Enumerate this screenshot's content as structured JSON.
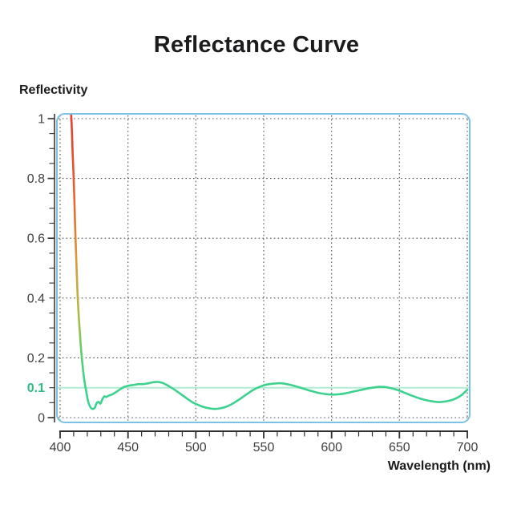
{
  "title": "Reflectance Curve",
  "y_axis_title": "Reflectivity",
  "x_axis_title": "Wavelength (nm)",
  "colors": {
    "plot_border_blue": "#7bc1e5",
    "grid_dots": "#4d4d4d",
    "axis": "#2f2f2f",
    "tick_label": "#3f3f3f",
    "accent_green_label": "#2bbd82",
    "reference_line_mint": "#b2ecd4",
    "curve_green": "#3bd28f"
  },
  "chart_data": {
    "type": "line",
    "title": "Reflectance Curve",
    "xlabel": "Wavelength (nm)",
    "ylabel": "Reflectivity",
    "xlim": [
      400,
      700
    ],
    "ylim": [
      0,
      1
    ],
    "grid": "dotted",
    "x_ticks": [
      {
        "label": "400",
        "value": 400
      },
      {
        "label": "450",
        "value": 450
      },
      {
        "label": "500",
        "value": 500
      },
      {
        "label": "550",
        "value": 550
      },
      {
        "label": "600",
        "value": 600
      },
      {
        "label": "650",
        "value": 650
      },
      {
        "label": "700",
        "value": 700
      }
    ],
    "x_minor_step": 10,
    "y_ticks": [
      {
        "label": "1",
        "value": 1.0
      },
      {
        "label": "0.8",
        "value": 0.8
      },
      {
        "label": "0.6",
        "value": 0.6
      },
      {
        "label": "0.4",
        "value": 0.4
      },
      {
        "label": "0.2",
        "value": 0.2
      },
      {
        "label": "0",
        "value": 0.0
      }
    ],
    "y_minor_step": 0.05,
    "y_highlight": {
      "label": "0.1",
      "value": 0.1
    },
    "reference_line_y": 0.1,
    "series": [
      {
        "name": "reflectance",
        "points": [
          [
            407.5,
            1.06
          ],
          [
            408.5,
            0.98
          ],
          [
            409.3,
            0.88
          ],
          [
            410,
            0.8
          ],
          [
            410.8,
            0.68
          ],
          [
            411.5,
            0.58
          ],
          [
            412.3,
            0.48
          ],
          [
            413,
            0.4
          ],
          [
            414,
            0.32
          ],
          [
            415,
            0.255
          ],
          [
            416,
            0.2
          ],
          [
            417,
            0.155
          ],
          [
            418,
            0.12
          ],
          [
            419,
            0.094
          ],
          [
            420,
            0.068
          ],
          [
            421,
            0.048
          ],
          [
            422.5,
            0.034
          ],
          [
            424,
            0.029
          ],
          [
            425.5,
            0.033
          ],
          [
            427,
            0.049
          ],
          [
            428.5,
            0.052
          ],
          [
            429.7,
            0.047
          ],
          [
            431,
            0.06
          ],
          [
            432.5,
            0.071
          ],
          [
            434,
            0.069
          ],
          [
            436,
            0.074
          ],
          [
            438,
            0.077
          ],
          [
            440,
            0.082
          ],
          [
            442,
            0.088
          ],
          [
            444,
            0.094
          ],
          [
            446,
            0.1
          ],
          [
            449,
            0.105
          ],
          [
            452,
            0.108
          ],
          [
            455,
            0.11
          ],
          [
            458,
            0.112
          ],
          [
            461,
            0.112
          ],
          [
            464,
            0.114
          ],
          [
            467,
            0.117
          ],
          [
            470,
            0.119
          ],
          [
            473,
            0.119
          ],
          [
            476,
            0.115
          ],
          [
            479,
            0.108
          ],
          [
            482,
            0.1
          ],
          [
            486,
            0.088
          ],
          [
            490,
            0.075
          ],
          [
            494,
            0.062
          ],
          [
            498,
            0.05
          ],
          [
            502,
            0.042
          ],
          [
            506,
            0.035
          ],
          [
            510,
            0.031
          ],
          [
            514,
            0.029
          ],
          [
            518,
            0.031
          ],
          [
            522,
            0.036
          ],
          [
            526,
            0.044
          ],
          [
            530,
            0.055
          ],
          [
            534,
            0.067
          ],
          [
            538,
            0.08
          ],
          [
            542,
            0.092
          ],
          [
            546,
            0.101
          ],
          [
            550,
            0.108
          ],
          [
            554,
            0.112
          ],
          [
            558,
            0.114
          ],
          [
            562,
            0.115
          ],
          [
            566,
            0.113
          ],
          [
            570,
            0.109
          ],
          [
            575,
            0.103
          ],
          [
            580,
            0.096
          ],
          [
            585,
            0.089
          ],
          [
            590,
            0.083
          ],
          [
            595,
            0.079
          ],
          [
            600,
            0.077
          ],
          [
            605,
            0.078
          ],
          [
            610,
            0.081
          ],
          [
            615,
            0.086
          ],
          [
            620,
            0.091
          ],
          [
            625,
            0.096
          ],
          [
            630,
            0.1
          ],
          [
            635,
            0.103
          ],
          [
            640,
            0.102
          ],
          [
            645,
            0.097
          ],
          [
            650,
            0.09
          ],
          [
            655,
            0.081
          ],
          [
            660,
            0.072
          ],
          [
            665,
            0.064
          ],
          [
            670,
            0.058
          ],
          [
            675,
            0.054
          ],
          [
            680,
            0.052
          ],
          [
            685,
            0.055
          ],
          [
            690,
            0.061
          ],
          [
            695,
            0.073
          ],
          [
            700,
            0.093
          ]
        ],
        "gradient_stops": [
          {
            "offset": 0.0,
            "color": "#ea3b30"
          },
          {
            "offset": 0.18,
            "color": "#e6502f"
          },
          {
            "offset": 0.38,
            "color": "#e3762f"
          },
          {
            "offset": 0.52,
            "color": "#d89b36"
          },
          {
            "offset": 0.63,
            "color": "#c4ad3e"
          },
          {
            "offset": 0.74,
            "color": "#9fc047"
          },
          {
            "offset": 0.85,
            "color": "#5ecc6e"
          },
          {
            "offset": 0.95,
            "color": "#3fd18c"
          },
          {
            "offset": 1.0,
            "color": "#3bd28f"
          }
        ]
      }
    ]
  }
}
